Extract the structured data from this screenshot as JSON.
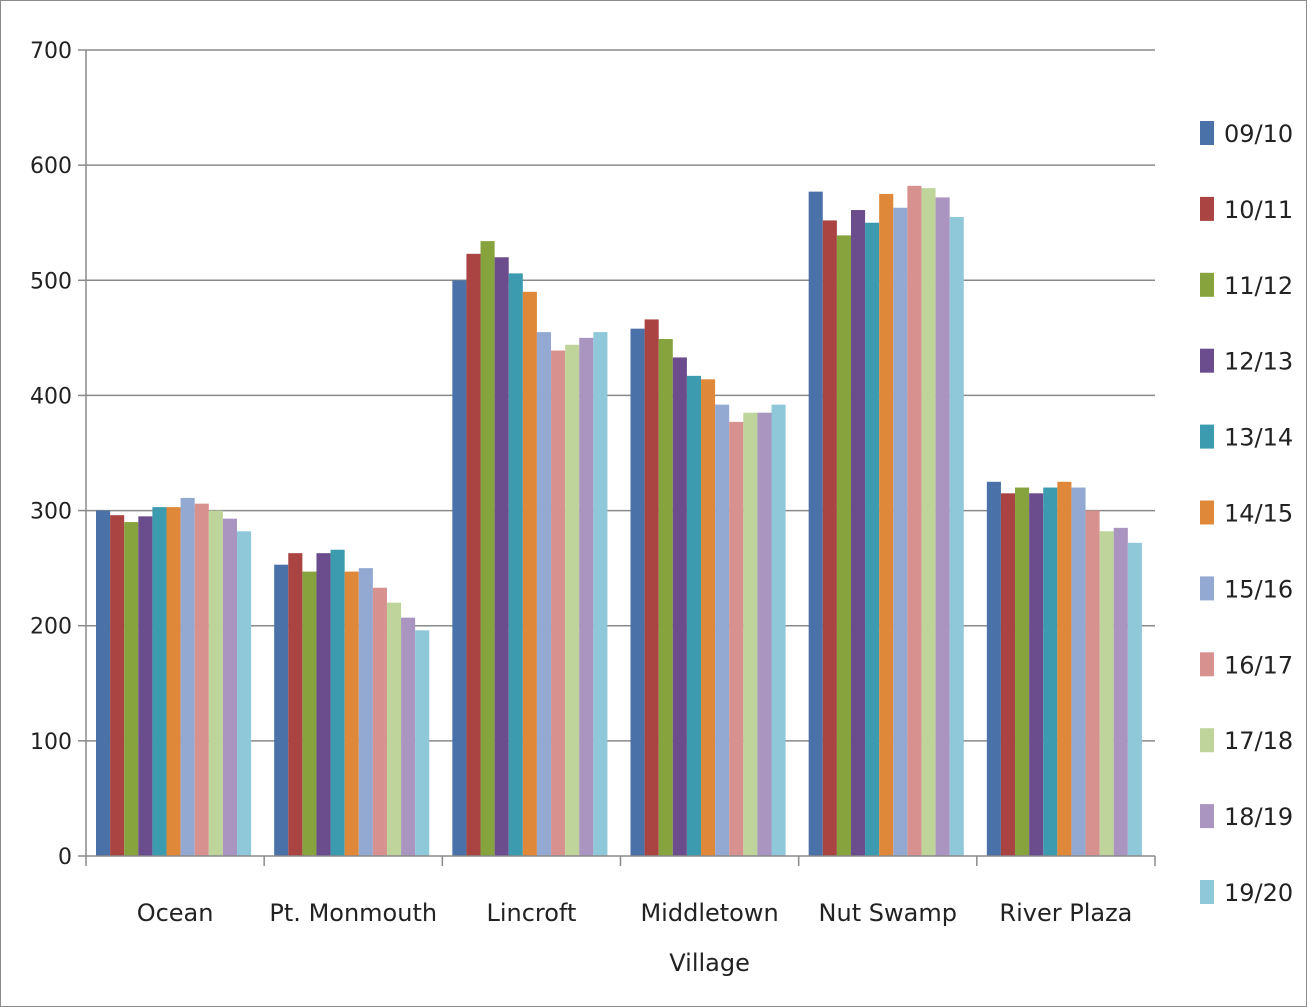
{
  "chart_data": {
    "type": "bar",
    "title": "",
    "xlabel": "",
    "ylabel": "",
    "ylim": [
      0,
      700
    ],
    "yticks": [
      "0",
      "100",
      "200",
      "300",
      "400",
      "500",
      "600",
      "700"
    ],
    "grid": true,
    "legend_position": "right",
    "categories": [
      [
        "Ocean"
      ],
      [
        "Pt. Monmouth"
      ],
      [
        "Lincroft"
      ],
      [
        "Middletown",
        "Village"
      ],
      [
        "Nut Swamp"
      ],
      [
        "River Plaza"
      ]
    ],
    "series": [
      {
        "name": "09/10",
        "color": "#4a72a8",
        "values": [
          300,
          253,
          500,
          458,
          577,
          325
        ]
      },
      {
        "name": "10/11",
        "color": "#a94442",
        "values": [
          296,
          263,
          523,
          466,
          552,
          315
        ]
      },
      {
        "name": "11/12",
        "color": "#86a33e",
        "values": [
          290,
          247,
          534,
          449,
          539,
          320
        ]
      },
      {
        "name": "12/13",
        "color": "#6b4c8c",
        "values": [
          295,
          263,
          520,
          433,
          561,
          315
        ]
      },
      {
        "name": "13/14",
        "color": "#3d9bb0",
        "values": [
          303,
          266,
          506,
          417,
          550,
          320
        ]
      },
      {
        "name": "14/15",
        "color": "#e0883a",
        "values": [
          303,
          247,
          490,
          414,
          575,
          325
        ]
      },
      {
        "name": "15/16",
        "color": "#93a9d1",
        "values": [
          311,
          250,
          455,
          392,
          563,
          320
        ]
      },
      {
        "name": "16/17",
        "color": "#d79290",
        "values": [
          306,
          233,
          439,
          377,
          582,
          300
        ]
      },
      {
        "name": "17/18",
        "color": "#bfd49a",
        "values": [
          300,
          220,
          444,
          385,
          580,
          282
        ]
      },
      {
        "name": "18/19",
        "color": "#a995c0",
        "values": [
          293,
          207,
          450,
          385,
          572,
          285
        ]
      },
      {
        "name": "19/20",
        "color": "#8fc8d8",
        "values": [
          282,
          196,
          455,
          392,
          555,
          272
        ]
      }
    ]
  }
}
